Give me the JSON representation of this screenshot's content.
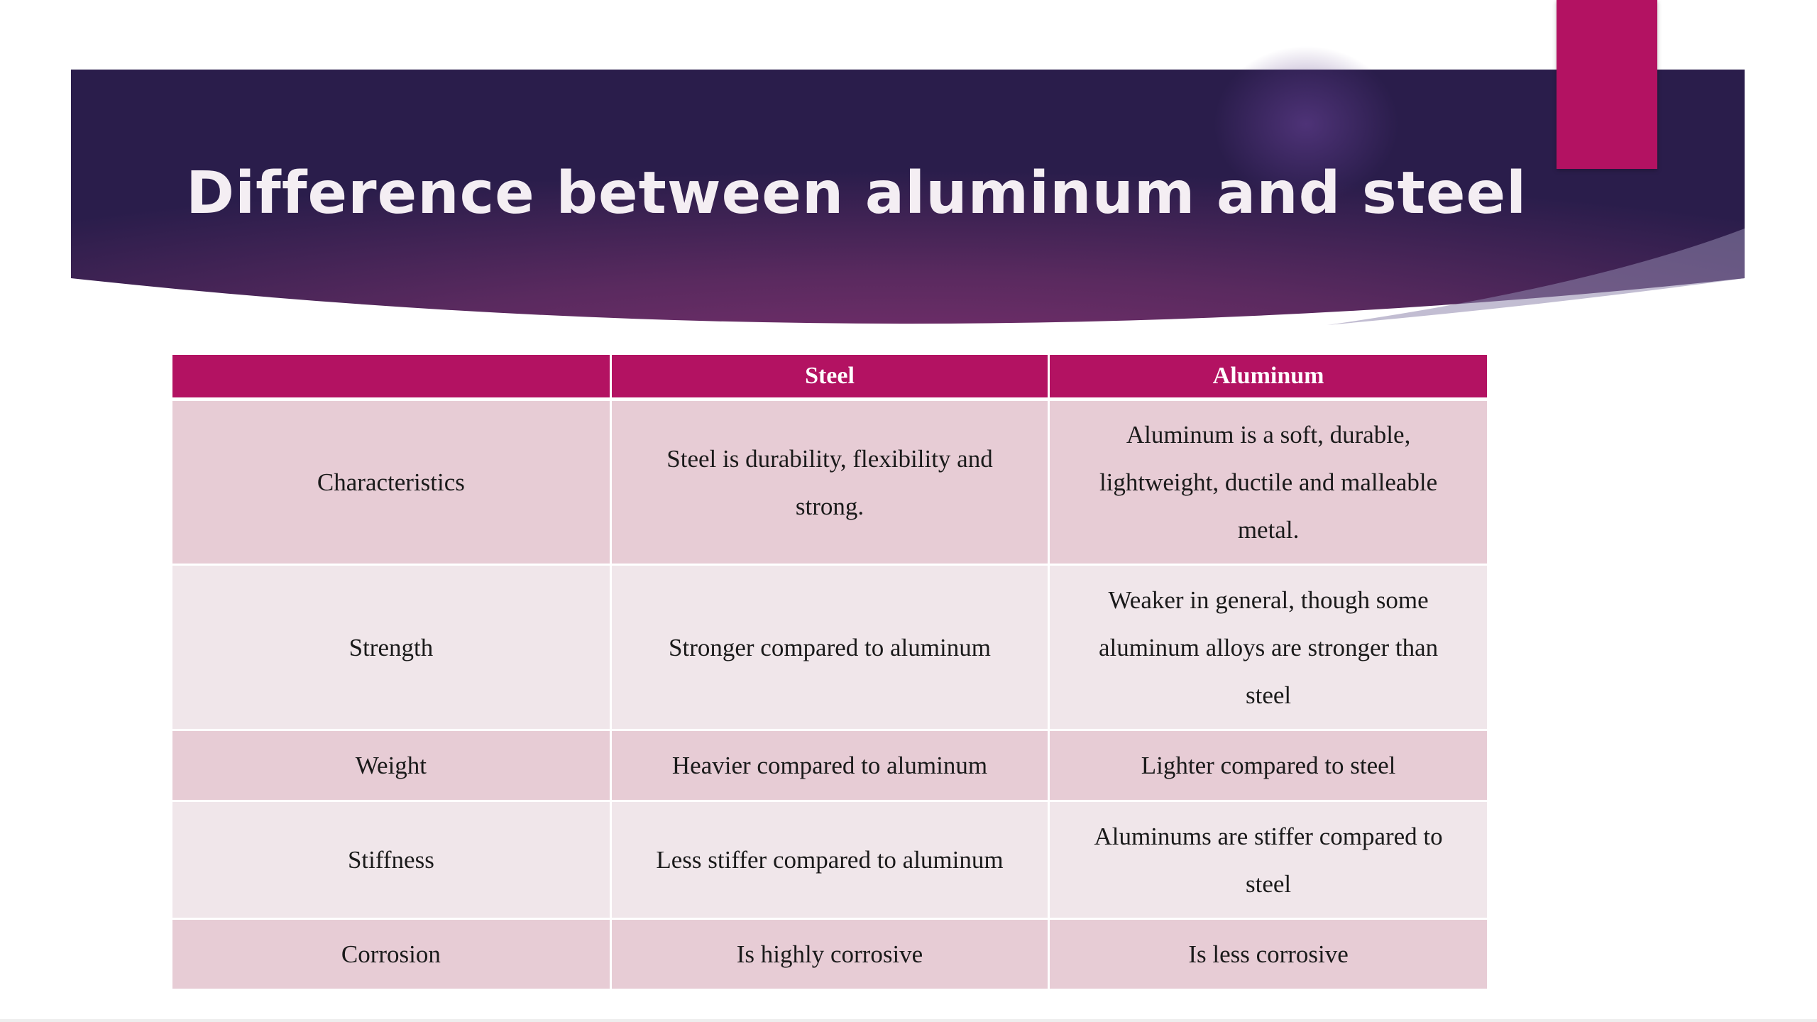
{
  "slide": {
    "title": "Difference between aluminum and steel",
    "colors": {
      "banner_dark": "#2a1d4b",
      "banner_mid": "#6d2e68",
      "accent": "#b31262",
      "row_odd": "#e7ccd5",
      "row_even": "#f0e6ea"
    }
  },
  "table": {
    "headers": [
      "",
      "Steel",
      "Aluminum"
    ],
    "rows": [
      [
        "Characteristics",
        "Steel is durability, flexibility and strong.",
        "Aluminum is a soft, durable, lightweight, ductile and malleable metal."
      ],
      [
        "Strength",
        "Stronger compared to aluminum",
        "Weaker in general, though some aluminum alloys are stronger than steel"
      ],
      [
        "Weight",
        "Heavier compared to aluminum",
        "Lighter compared to steel"
      ],
      [
        "Stiffness",
        "Less stiffer compared to aluminum",
        "Aluminums are stiffer compared to steel"
      ],
      [
        "Corrosion",
        "Is highly corrosive",
        "Is less corrosive"
      ]
    ]
  }
}
